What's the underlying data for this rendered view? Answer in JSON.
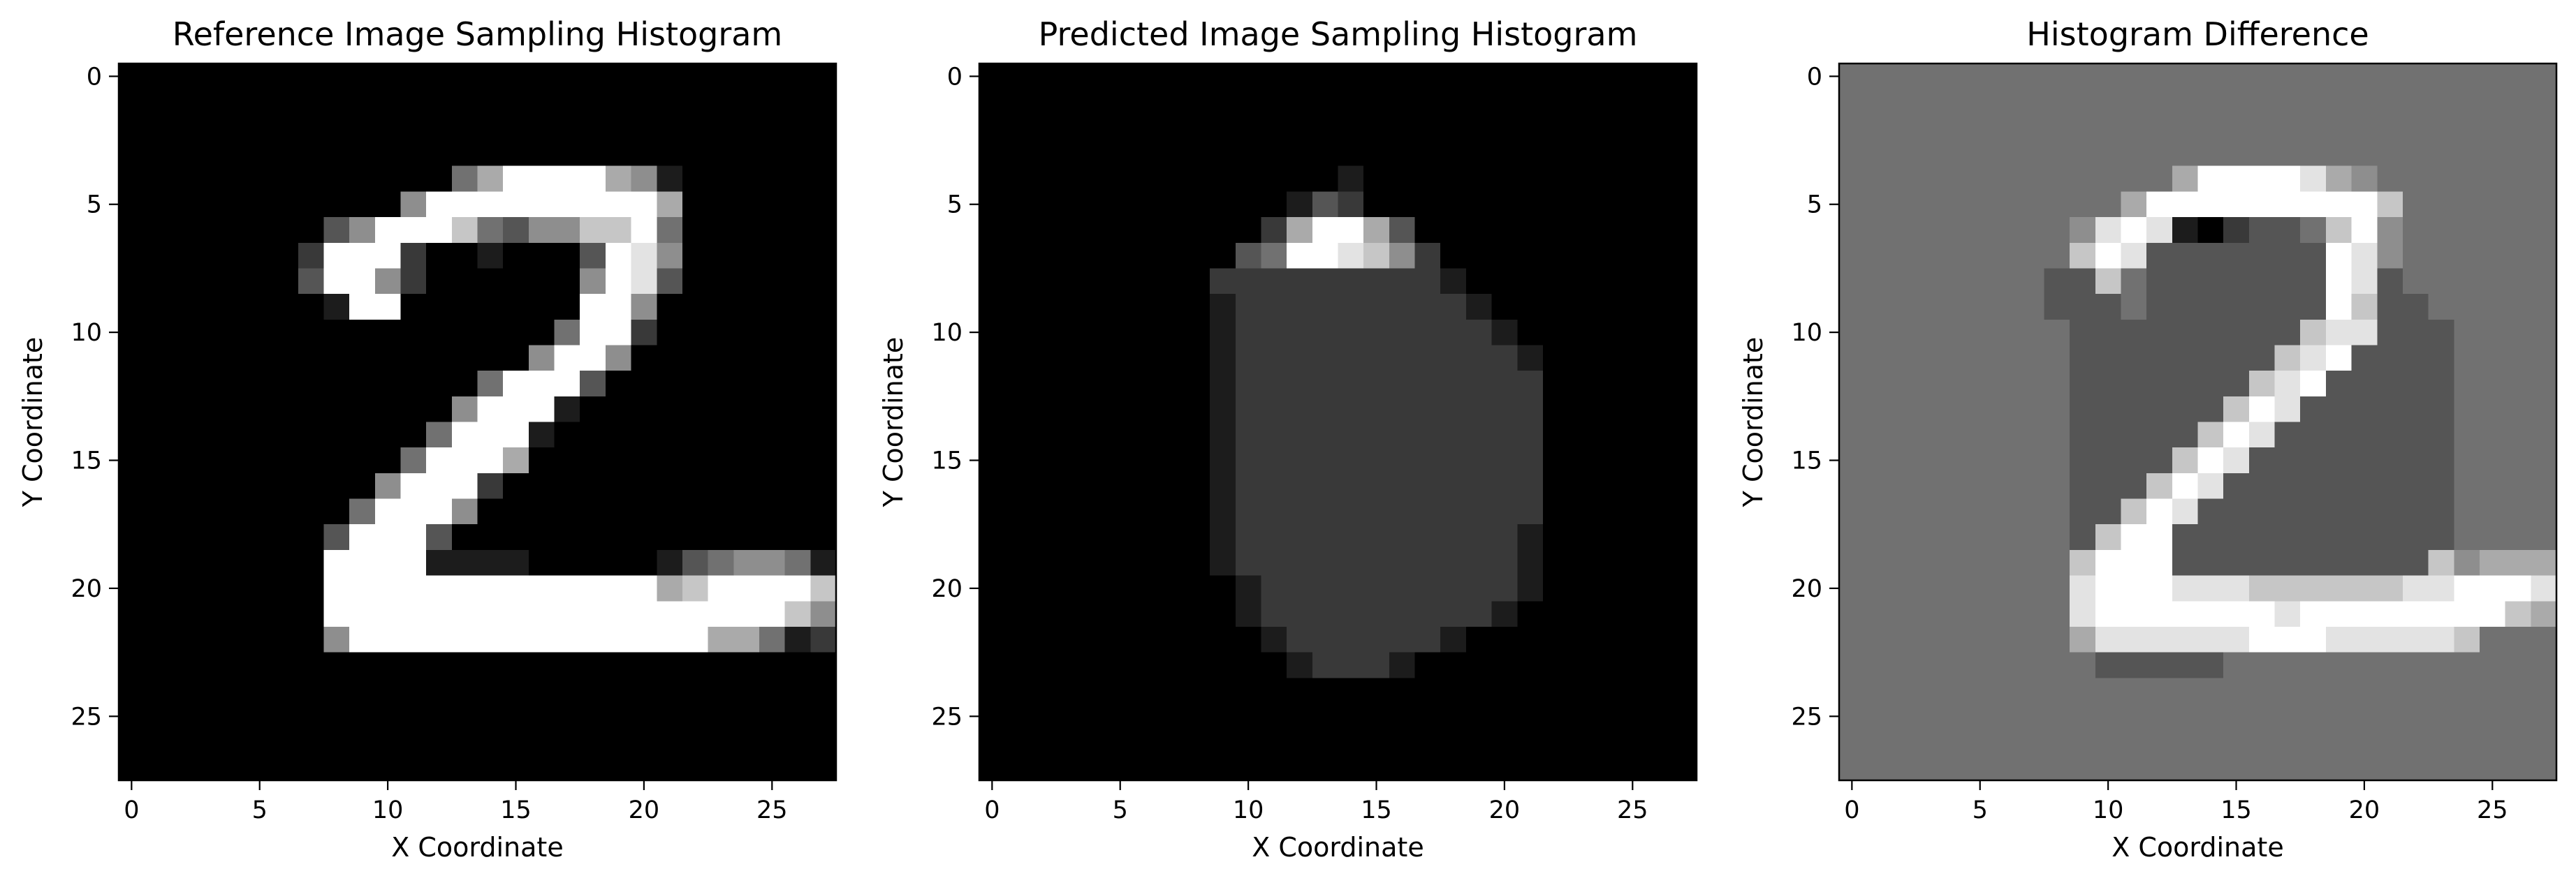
{
  "chart_data": [
    {
      "type": "heatmap",
      "title": "Reference Image Sampling Histogram",
      "xlabel": "X Coordinate",
      "ylabel": "Y Coordinate",
      "xticks": [
        0,
        5,
        10,
        15,
        20,
        25
      ],
      "yticks": [
        0,
        5,
        10,
        15,
        20,
        25
      ],
      "xlim": [
        -0.5,
        27.5
      ],
      "ylim": [
        27.5,
        -0.5
      ],
      "colormap": "gray",
      "value_range": [
        0,
        1
      ],
      "grid_size": [
        28,
        28
      ],
      "rows": [
        "0000000000000000000000000000",
        "0000000000000000000000000000",
        "0000000000000000000000000000",
        "0000000000000000000000000000",
        "0000000000000469999651000000",
        "0000000000059999999996000000",
        "0000000035999743557794000000",
        "0000000299920010003985000000",
        "0000000399520000005983000000",
        "0000000019900000009950000000",
        "0000000000000000049920000000",
        "0000000000000000599500000000",
        "0000000000000049993000000000",
        "0000000000000599910000000000",
        "0000000000004999100000000000",
        "0000000000049996000000000000",
        "0000000000599920000000000000",
        "0000000004999500000000000000",
        "0000000039993000000000000000",
        "0000000099991111000001345541",
        "0000000099999999999996799997",
        "0000000099999999999999999975",
        "0000000059999999999999966412",
        "0000000000000000000000000000",
        "0000000000000000000000000000",
        "0000000000000000000000000000",
        "0000000000000000000000000000",
        "0000000000000000000000000000"
      ]
    },
    {
      "type": "heatmap",
      "title": "Predicted Image Sampling Histogram",
      "xlabel": "X Coordinate",
      "ylabel": "Y Coordinate",
      "xticks": [
        0,
        5,
        10,
        15,
        20,
        25
      ],
      "yticks": [
        0,
        5,
        10,
        15,
        20,
        25
      ],
      "xlim": [
        -0.5,
        27.5
      ],
      "ylim": [
        27.5,
        -0.5
      ],
      "colormap": "gray",
      "value_range": [
        0,
        1
      ],
      "grid_size": [
        28,
        28
      ],
      "rows": [
        "0000000000000000000000000000",
        "0000000000000000000000000000",
        "0000000000000000000000000000",
        "0000000000000000000000000000",
        "0000000000000010000000000000",
        "0000000000001320000000000000",
        "0000000000026996300000000000",
        "0000000000349987520000000000",
        "0000000002222222221000000000",
        "0000000001222222222100000000",
        "0000000001222222222210000000",
        "0000000001222222222221000000",
        "0000000001222222222222000000",
        "0000000001222222222222000000",
        "0000000001222222222222000000",
        "0000000001222222222222000000",
        "0000000001222222222222000000",
        "0000000001222222222222000000",
        "0000000001222222222221000000",
        "0000000001222222222221000000",
        "0000000000122222222221000000",
        "0000000000122222222210000000",
        "0000000000012222221000000000",
        "0000000000001222100000000000",
        "0000000000000000000000000000",
        "0000000000000000000000000000",
        "0000000000000000000000000000",
        "0000000000000000000000000000"
      ]
    },
    {
      "type": "heatmap",
      "title": "Histogram Difference",
      "xlabel": "X Coordinate",
      "ylabel": "Y Coordinate",
      "xticks": [
        0,
        5,
        10,
        15,
        20,
        25
      ],
      "yticks": [
        0,
        5,
        10,
        15,
        20,
        25
      ],
      "xlim": [
        -0.5,
        27.5
      ],
      "ylim": [
        27.5,
        -0.5
      ],
      "colormap": "gray",
      "value_range": [
        -1,
        1
      ],
      "grid_size": [
        28,
        28
      ],
      "rows": [
        "4444444444444444444444444444",
        "4444444444444444444444444444",
        "4444444444444444444444444444",
        "4444444444444444444444444444",
        "4444444444444699998654444444",
        "4444444444469999999997444444",
        "4444444445898102334795444444",
        "4444444447983333333985444444",
        "4444444433743333333983444444",
        "4444444433343333333973344444",
        "4444444443333333337883334444",
        "4444444443333333378933334444",
        "4444444443333333789333334444",
        "4444444443333337983333334444",
        "4444444443333379833333334444",
        "4444444443333798333333334444",
        "4444444443337983333333334444",
        "4444444443379833333333334444",
        "4444444443799333333333334444",
        "4444444447999333333333375666",
        "4444444448999888777777889998",
        "4444444448999999989999999976",
        "4444444446888888999888887444",
        "4444444444333334444444444444",
        "4444444444444444444444444444",
        "4444444444444444444444444444",
        "4444444444444444444444444444",
        "4444444444444444444444444444"
      ]
    }
  ]
}
